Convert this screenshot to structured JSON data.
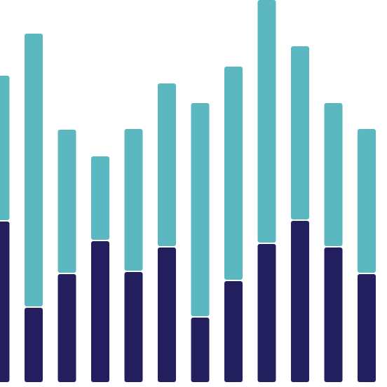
{
  "chart_data": {
    "type": "stacked-bar",
    "categories": [
      null,
      null,
      null,
      null,
      null,
      null,
      null,
      null,
      null,
      null,
      null,
      null
    ],
    "series": [
      {
        "color": "#231f5f",
        "values": [
          230,
          107,
          155,
          202,
          158,
          193,
          93,
          145,
          198,
          231,
          193,
          155
        ]
      },
      {
        "color": "#5bb8c1",
        "values": [
          207,
          390,
          205,
          120,
          203,
          233,
          305,
          305,
          347,
          248,
          205,
          206
        ]
      }
    ],
    "ylim": [
      0,
      545
    ]
  }
}
